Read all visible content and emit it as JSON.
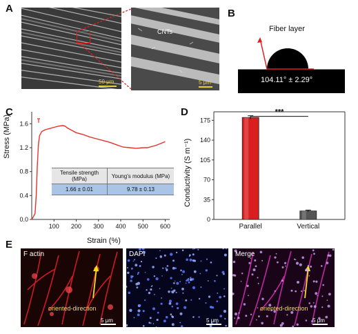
{
  "panels": {
    "A": {
      "label": "A",
      "scale_left": "50 μm",
      "scale_right": "5 μm",
      "cnt_label": "CNTs"
    },
    "B": {
      "label": "B",
      "title": "Fiber layer",
      "angle": "104.11° ± 2.29°"
    },
    "C": {
      "label": "C",
      "xlabel": "Strain (%)",
      "ylabel": "Stress (MPa)",
      "table": {
        "headers": [
          "Tensile strength (MPa)",
          "Young's modulus (MPa)"
        ],
        "values": [
          "1.66 ± 0.01",
          "9.78 ± 0.13"
        ]
      }
    },
    "D": {
      "label": "D",
      "ylabel": "Conductivity (S m⁻¹)",
      "significance": "***"
    },
    "E": {
      "label": "E",
      "titles": [
        "F actin",
        "DAPI",
        "Merge"
      ],
      "oriented": "oriented-direction",
      "scale": "5 μm"
    }
  },
  "chart_data": [
    {
      "type": "line",
      "xlabel": "Strain (%)",
      "ylabel": "Stress (MPa)",
      "xlim": [
        0,
        620
      ],
      "ylim": [
        0,
        1.8
      ],
      "xticks": [
        "100",
        "200",
        "300",
        "400",
        "500",
        "600"
      ],
      "yticks": [
        "0.0",
        "0.4",
        "0.8",
        "1.2",
        "1.6"
      ],
      "color": "#e8302a",
      "x": [
        0,
        8,
        15,
        20,
        25,
        30,
        35,
        45,
        60,
        80,
        100,
        120,
        140,
        150,
        160,
        180,
        200,
        230,
        260,
        290,
        320,
        350,
        380,
        410,
        440,
        470,
        500,
        520,
        540,
        560,
        580,
        600
      ],
      "y": [
        0.0,
        0.05,
        0.1,
        0.4,
        0.9,
        1.25,
        1.4,
        1.47,
        1.5,
        1.52,
        1.54,
        1.56,
        1.57,
        1.56,
        1.53,
        1.49,
        1.45,
        1.42,
        1.38,
        1.35,
        1.32,
        1.29,
        1.25,
        1.21,
        1.2,
        1.19,
        1.2,
        1.2,
        1.22,
        1.24,
        1.27,
        1.3
      ]
    },
    {
      "type": "bar",
      "categories": [
        "Parallel",
        "Vertical"
      ],
      "values": [
        180,
        15
      ],
      "errors": [
        3,
        1.5
      ],
      "ylabel": "Conductivity (S m⁻¹)",
      "ylim": [
        0,
        190
      ],
      "yticks": [
        "0",
        "35",
        "70",
        "105",
        "140",
        "175"
      ],
      "colors": [
        "#d81e1e",
        "#555555"
      ]
    }
  ]
}
